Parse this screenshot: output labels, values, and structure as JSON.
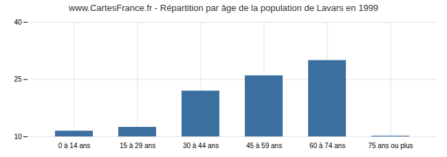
{
  "chart_data": {
    "type": "bar",
    "title": "www.CartesFrance.fr - Répartition par âge de la population de Lavars en 1999",
    "categories": [
      "0 à 14 ans",
      "15 à 29 ans",
      "30 à 44 ans",
      "45 à 59 ans",
      "60 à 74 ans",
      "75 ans ou plus"
    ],
    "values": [
      11.5,
      12.5,
      22,
      26,
      30,
      10.2
    ],
    "color": "#3a6f9f",
    "ylim": [
      10,
      40
    ],
    "yticks": [
      10,
      25,
      40
    ],
    "grid": true
  }
}
